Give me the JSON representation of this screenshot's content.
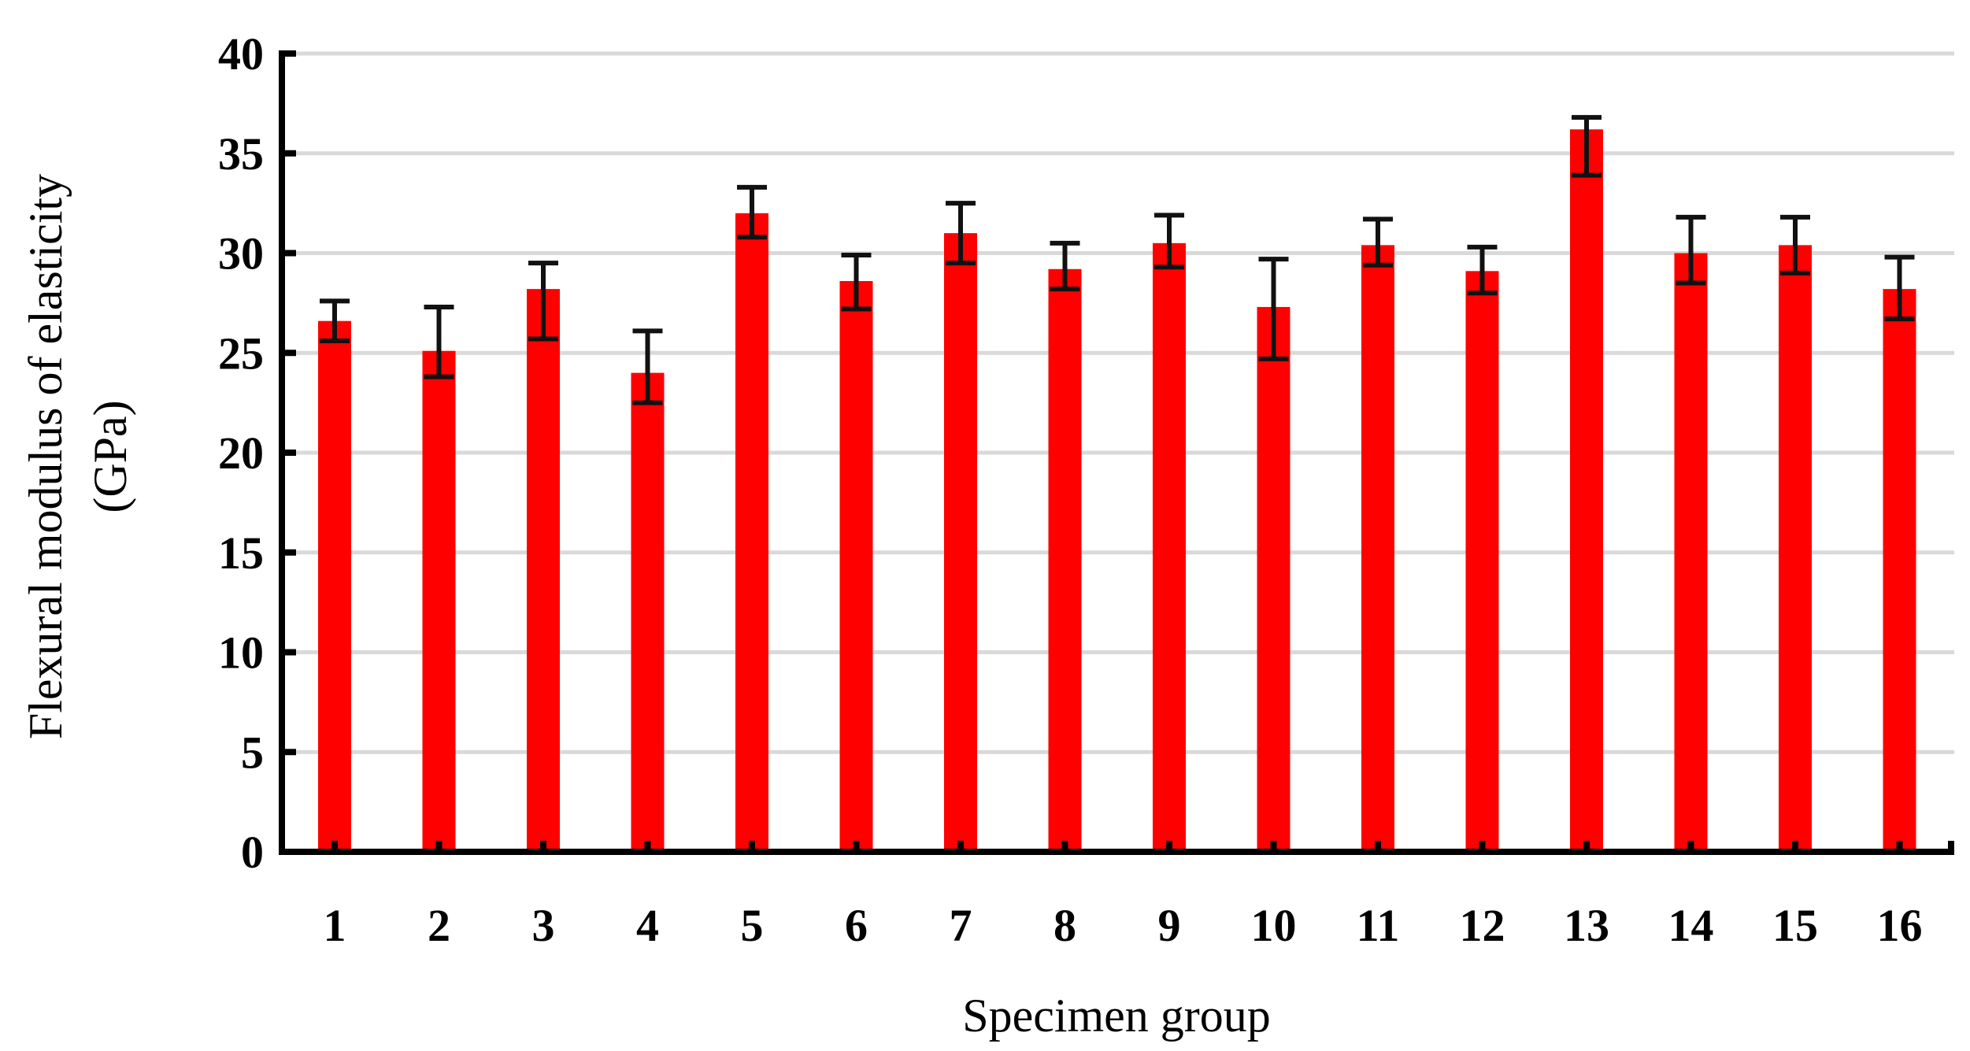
{
  "chart_data": {
    "type": "bar",
    "xlabel": "Specimen group",
    "ylabel_line1": "Flexural modulus of elasticity",
    "ylabel_line2": "(GPa)",
    "categories": [
      "1",
      "2",
      "3",
      "4",
      "5",
      "6",
      "7",
      "8",
      "9",
      "10",
      "11",
      "12",
      "13",
      "14",
      "15",
      "16"
    ],
    "values": [
      26.6,
      25.1,
      28.2,
      24.0,
      32.0,
      28.6,
      31.0,
      29.2,
      30.5,
      27.3,
      30.4,
      29.1,
      36.2,
      30.0,
      30.4,
      28.2
    ],
    "error_low": [
      1.0,
      1.3,
      2.5,
      1.5,
      1.2,
      1.4,
      1.5,
      1.0,
      1.2,
      2.6,
      1.0,
      1.1,
      2.3,
      1.5,
      1.4,
      1.5
    ],
    "error_high": [
      1.0,
      2.2,
      1.3,
      2.1,
      1.3,
      1.3,
      1.5,
      1.3,
      1.4,
      2.4,
      1.3,
      1.2,
      0.6,
      1.8,
      1.4,
      1.6
    ],
    "ylim": [
      0,
      40
    ],
    "yticks": [
      "0",
      "5",
      "10",
      "15",
      "20",
      "25",
      "30",
      "35",
      "40"
    ],
    "grid": true,
    "bar_color": "#ff0000",
    "error_color": "#111111",
    "grid_color": "#d9d9d9",
    "axis_color": "#000000"
  }
}
